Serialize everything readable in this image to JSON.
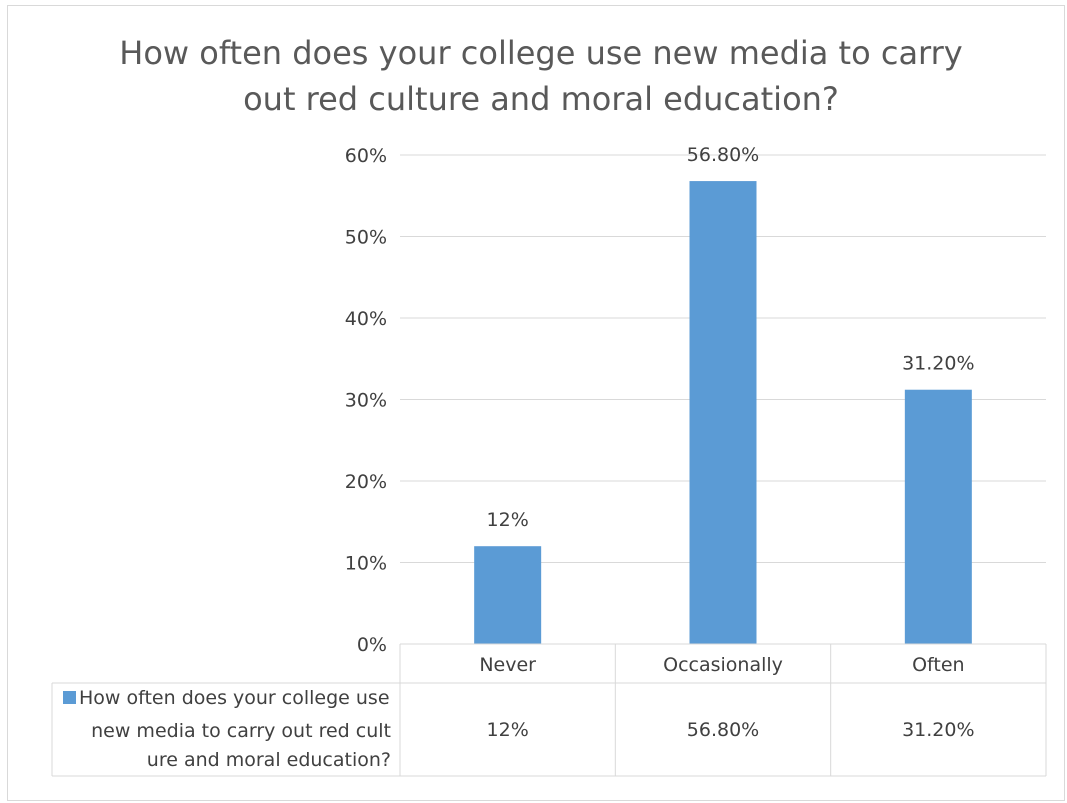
{
  "chart_data": {
    "type": "bar",
    "title_lines": [
      "How often does your college use new media to carry",
      "out red culture and moral education?"
    ],
    "categories": [
      "Never",
      "Occasionally",
      "Often"
    ],
    "series": [
      {
        "name_lines": [
          "How often does your college use",
          "new media to carry out red cult",
          "ure and moral education?"
        ],
        "values": [
          12,
          56.8,
          31.2
        ],
        "data_labels": [
          "12%",
          "56.80%",
          "31.20%"
        ],
        "color": "#5b9bd5"
      }
    ],
    "y_ticks": [
      "0%",
      "10%",
      "20%",
      "30%",
      "40%",
      "50%",
      "60%"
    ],
    "ylim": [
      0,
      60
    ],
    "grid": true,
    "data_table": true
  }
}
